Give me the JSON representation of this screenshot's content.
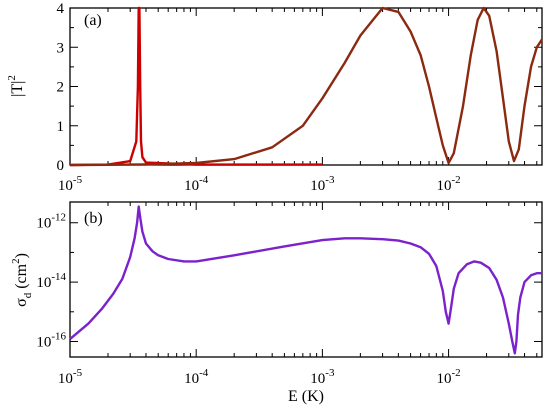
{
  "chart_data": [
    {
      "type": "line",
      "panel_label": "(a)",
      "ylabel": "|T|",
      "ylabel_superscript": "2",
      "xscale": "log",
      "xlim": [
        1e-05,
        0.055
      ],
      "ylim": [
        0,
        4
      ],
      "yticks": [
        0,
        1,
        2,
        3,
        4
      ],
      "grid": false,
      "colors": {
        "series_red": "#cc0000",
        "series_brown": "#8b2a10"
      },
      "series": [
        {
          "color": "#cc0000",
          "x": [
            1e-05,
            2e-05,
            3e-05,
            3.35e-05,
            3.45e-05,
            3.5e-05,
            3.55e-05,
            3.6e-05,
            3.65e-05,
            3.75e-05,
            4e-05,
            0.0001,
            0.0003,
            0.001
          ],
          "y": [
            0.001,
            0.01,
            0.1,
            0.6,
            2.0,
            4.0,
            4.0,
            2.0,
            0.6,
            0.2,
            0.06,
            0.01,
            0.01,
            0.01
          ]
        },
        {
          "color": "#8b2a10",
          "x": [
            1e-05,
            2e-05,
            4e-05,
            0.0001,
            0.0002,
            0.0004,
            0.0007,
            0.001,
            0.0015,
            0.002,
            0.003,
            0.004,
            0.005,
            0.006,
            0.007,
            0.008,
            0.009,
            0.01,
            0.011,
            0.013,
            0.015,
            0.017,
            0.019,
            0.021,
            0.024,
            0.027,
            0.03,
            0.033,
            0.036,
            0.04,
            0.045,
            0.05,
            0.055
          ],
          "y": [
            0.0,
            0.005,
            0.015,
            0.05,
            0.15,
            0.45,
            1.0,
            1.7,
            2.6,
            3.3,
            4.0,
            3.9,
            3.4,
            2.8,
            2.0,
            1.2,
            0.5,
            0.05,
            0.3,
            1.5,
            2.8,
            3.7,
            4.0,
            3.8,
            2.9,
            1.7,
            0.6,
            0.1,
            0.4,
            1.5,
            2.5,
            3.0,
            3.2
          ]
        }
      ]
    },
    {
      "type": "line",
      "panel_label": "(b)",
      "ylabel": "σ",
      "ylabel_subscript": "d",
      "ylabel_unit": " (cm",
      "ylabel_unit_superscript": "2",
      "ylabel_close": ")",
      "xlabel": "E (K)",
      "xscale": "log",
      "yscale": "log",
      "xlim": [
        1e-05,
        0.055
      ],
      "ylim": [
        3e-17,
        5e-12
      ],
      "xticks": [
        {
          "value": 1e-05,
          "base": "10",
          "exp": "-5"
        },
        {
          "value": 0.0001,
          "base": "10",
          "exp": "-4"
        },
        {
          "value": 0.001,
          "base": "10",
          "exp": "-3"
        },
        {
          "value": 0.01,
          "base": "10",
          "exp": "-2"
        }
      ],
      "yticks": [
        {
          "value": 1e-16,
          "base": "10",
          "exp": "-16"
        },
        {
          "value": 1e-14,
          "base": "10",
          "exp": "-14"
        },
        {
          "value": 1e-12,
          "base": "10",
          "exp": "-12"
        }
      ],
      "grid": false,
      "colors": {
        "series_purple": "#7b22cc"
      },
      "series": [
        {
          "color": "#7b22cc",
          "x": [
            1e-05,
            1.4e-05,
            1.8e-05,
            2.2e-05,
            2.6e-05,
            3e-05,
            3.25e-05,
            3.4e-05,
            3.5e-05,
            3.6e-05,
            3.75e-05,
            4e-05,
            4.5e-05,
            5e-05,
            6e-05,
            8e-05,
            0.0001,
            0.0002,
            0.0005,
            0.001,
            0.0015,
            0.002,
            0.003,
            0.004,
            0.005,
            0.006,
            0.007,
            0.008,
            0.009,
            0.0095,
            0.01,
            0.0105,
            0.011,
            0.012,
            0.014,
            0.016,
            0.018,
            0.021,
            0.024,
            0.027,
            0.03,
            0.032,
            0.0335,
            0.0345,
            0.0355,
            0.037,
            0.04,
            0.045,
            0.05,
            0.055
          ],
          "y": [
            1.2e-16,
            4e-16,
            1.3e-15,
            4e-15,
            1.3e-14,
            7e-14,
            3e-13,
            1e-12,
            3.5e-12,
            1.5e-12,
            5e-13,
            2e-13,
            1.1e-13,
            8e-14,
            6e-14,
            5e-14,
            5e-14,
            8e-14,
            1.6e-13,
            2.6e-13,
            3e-13,
            3e-13,
            2.8e-13,
            2.5e-13,
            2e-13,
            1.5e-13,
            9e-14,
            3.5e-14,
            5e-15,
            1e-15,
            4e-16,
            1.5e-15,
            6e-15,
            2e-14,
            4e-14,
            5e-14,
            4.5e-14,
            3e-14,
            1.2e-14,
            3e-15,
            4e-16,
            1e-16,
            4e-17,
            1e-16,
            8e-16,
            3e-15,
            1e-14,
            1.7e-14,
            2e-14,
            2e-14
          ]
        }
      ]
    }
  ]
}
